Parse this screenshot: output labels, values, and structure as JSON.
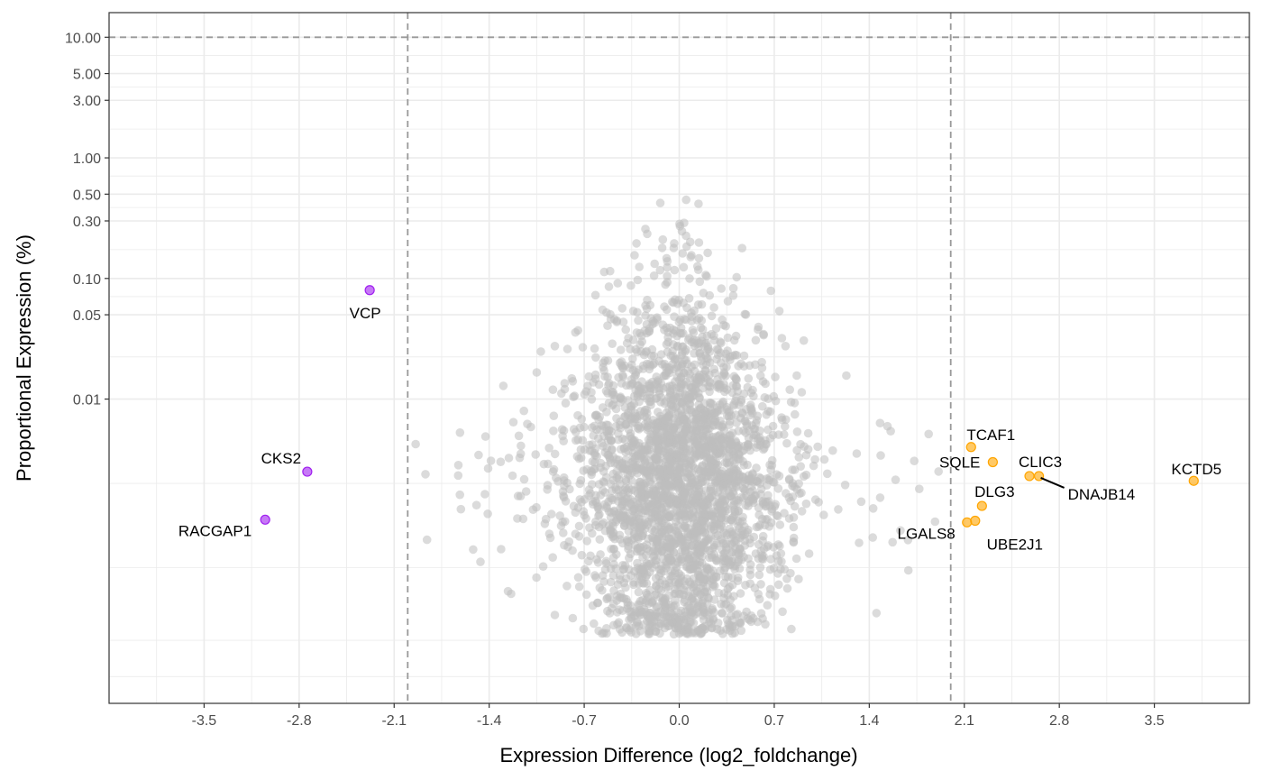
{
  "chart_data": {
    "type": "scatter",
    "title": "",
    "xlabel": "Expression Difference (log2_foldchange)",
    "ylabel": "Proportional Expression (%)",
    "xlim": [
      -4.2,
      4.2
    ],
    "ylim": [
      3e-05,
      16
    ],
    "y_scale": "log",
    "x_ticks": [
      -3.5,
      -2.8,
      -2.1,
      -1.4,
      -0.7,
      0.0,
      0.7,
      1.4,
      2.1,
      2.8,
      3.5
    ],
    "x_tick_labels": [
      "-3.5",
      "-2.8",
      "-2.1",
      "-1.4",
      "-0.7",
      "0.0",
      "0.7",
      "1.4",
      "2.1",
      "2.8",
      "3.5"
    ],
    "y_ticks": [
      0.01,
      0.05,
      0.1,
      0.3,
      0.5,
      1,
      3,
      5,
      10
    ],
    "y_tick_labels": [
      "0.01",
      "0.05",
      "0.10",
      "0.30",
      "0.50",
      "1.00",
      "3.00",
      "5.00",
      "10.00"
    ],
    "grid": true,
    "threshold_lines": {
      "x": [
        -2.0,
        2.0
      ],
      "y": [
        10
      ]
    },
    "colors": {
      "background_points": "#bebebe",
      "down_regulated": "#a020f0",
      "up_regulated": "#ffa500",
      "threshold_line": "#999999",
      "grid": "#ebebeb"
    },
    "labeled_points": [
      {
        "label": "VCP",
        "x": -2.28,
        "y": 0.08,
        "group": "down"
      },
      {
        "label": "CKS2",
        "x": -2.74,
        "y": 0.0025,
        "group": "down"
      },
      {
        "label": "RACGAP1",
        "x": -3.05,
        "y": 0.001,
        "group": "down"
      },
      {
        "label": "TCAF1",
        "x": 2.15,
        "y": 0.004,
        "group": "up"
      },
      {
        "label": "SQLE",
        "x": 2.31,
        "y": 0.003,
        "group": "up"
      },
      {
        "label": "CLIC3",
        "x": 2.58,
        "y": 0.0023,
        "group": "up"
      },
      {
        "label": "DNAJB14",
        "x": 2.65,
        "y": 0.0023,
        "group": "up"
      },
      {
        "label": "KCTD5",
        "x": 3.79,
        "y": 0.0021,
        "group": "up"
      },
      {
        "label": "DLG3",
        "x": 2.23,
        "y": 0.0013,
        "group": "up"
      },
      {
        "label": "LGALS8",
        "x": 2.12,
        "y": 0.00095,
        "group": "up"
      },
      {
        "label": "UBE2J1",
        "x": 2.18,
        "y": 0.00098,
        "group": "up"
      }
    ],
    "background_cloud": {
      "count": 3000,
      "x_center": 0.0,
      "x_spread": 0.35,
      "y_median": 0.002,
      "y_note": "dense cloud of gray points, x roughly -2.2 to 1.95, y roughly 0.0001 to 3.3"
    }
  }
}
